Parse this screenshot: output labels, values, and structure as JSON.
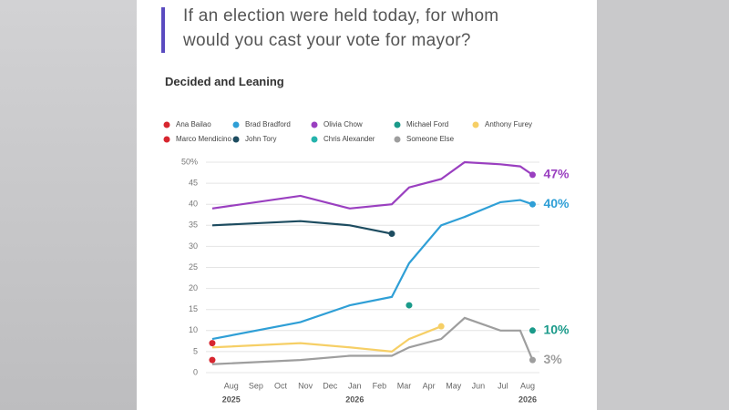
{
  "header": {
    "title_line1": "If an election were held today, for whom",
    "title_line2": "would you cast your vote for mayor?"
  },
  "chart_data": {
    "type": "line",
    "subtitle": "Decided and Leaning",
    "x": [
      -0.77,
      2.8,
      4.8,
      6.5,
      7.2,
      8.5,
      9.45,
      10.9,
      11.7,
      12.2
    ],
    "xlim": [
      -1.1,
      12.7
    ],
    "xticks": [
      {
        "value": 0,
        "label": "Aug"
      },
      {
        "value": 1,
        "label": "Sep"
      },
      {
        "value": 2,
        "label": "Oct"
      },
      {
        "value": 3,
        "label": "Nov"
      },
      {
        "value": 4,
        "label": "Dec"
      },
      {
        "value": 5,
        "label": "Jan"
      },
      {
        "value": 6,
        "label": "Feb"
      },
      {
        "value": 7,
        "label": "Mar"
      },
      {
        "value": 8,
        "label": "Apr"
      },
      {
        "value": 9,
        "label": "May"
      },
      {
        "value": 10,
        "label": "Jun"
      },
      {
        "value": 11,
        "label": "Jul"
      },
      {
        "value": 12,
        "label": "Aug"
      }
    ],
    "x_year_labels": [
      {
        "value": 0,
        "label": "2025"
      },
      {
        "value": 5,
        "label": "2026"
      },
      {
        "value": 12,
        "label": "2026"
      }
    ],
    "ylim": [
      0,
      50
    ],
    "yticks": [
      0,
      5,
      10,
      15,
      20,
      25,
      30,
      35,
      40,
      45,
      {
        "value": 50,
        "label": "50%"
      }
    ],
    "grid": true,
    "series": [
      {
        "name": "Ana Bailao",
        "color": "#d7262f",
        "values": [
          7,
          null,
          null,
          null,
          null,
          null,
          null,
          null,
          null,
          null
        ]
      },
      {
        "name": "Brad Bradford",
        "color": "#2f9fd6",
        "values": [
          8,
          12,
          16,
          18,
          26,
          35,
          37,
          40.5,
          41,
          40
        ],
        "end_label": "40%"
      },
      {
        "name": "Olivia Chow",
        "color": "#9a3fc0",
        "values": [
          39,
          42,
          39,
          40,
          44,
          46,
          50,
          49.5,
          49,
          47
        ],
        "end_label": "47%"
      },
      {
        "name": "Michael Ford",
        "color": "#1a9a8a",
        "values": [
          null,
          null,
          null,
          null,
          16,
          null,
          null,
          null,
          null,
          10
        ],
        "end_label": "10%"
      },
      {
        "name": "Anthony Furey",
        "color": "#f6cf66",
        "values": [
          6,
          7,
          6,
          5,
          8,
          11,
          null,
          null,
          null,
          null
        ]
      },
      {
        "name": "Marco Mendicino",
        "color": "#d7262f",
        "values": [
          3,
          null,
          null,
          null,
          null,
          null,
          null,
          null,
          null,
          null
        ]
      },
      {
        "name": "John Tory",
        "color": "#1d4c60",
        "values": [
          35,
          36,
          35,
          33,
          null,
          null,
          null,
          null,
          null,
          null
        ]
      },
      {
        "name": "Chris Alexander",
        "color": "#25b3ac",
        "values": [
          null,
          null,
          null,
          null,
          null,
          null,
          null,
          null,
          null,
          null
        ]
      },
      {
        "name": "Someone Else",
        "color": "#9e9e9e",
        "values": [
          2,
          3,
          4,
          4,
          6,
          8,
          13,
          10,
          10,
          3
        ],
        "end_label": "3%"
      }
    ]
  }
}
